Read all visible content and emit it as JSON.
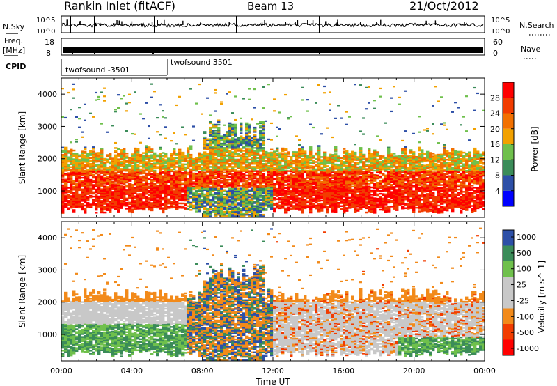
{
  "header": {
    "station": "Rankin Inlet (fitACF)",
    "beam": "Beam 13",
    "date": "21/Oct/2012"
  },
  "panels": {
    "nsky": {
      "left_label": "N.Sky",
      "right_label": "N.Search",
      "tick_top": "10^5",
      "tick_bottom": "10^0"
    },
    "freq": {
      "left_label_top": "Freq.",
      "left_label_bottom": "[MHz]",
      "left_tick_top": "18",
      "left_tick_bottom": "8",
      "right_label": "Nave",
      "right_tick_top": "60",
      "right_tick_bottom": "0"
    },
    "cpid": {
      "label": "CPID",
      "segments": [
        {
          "label": "twofsound -3501",
          "start_hour": 0
        },
        {
          "label": "twofsound 3501",
          "start_hour": 6.0
        }
      ]
    }
  },
  "colors": {
    "power": [
      "#0000ff",
      "#2d4fa7",
      "#3b8c59",
      "#6fc04c",
      "#f2a100",
      "#f27000",
      "#f23c00",
      "#ff0000"
    ],
    "velocity": [
      "#ff0000",
      "#f23c00",
      "#f28a1a",
      "#c8c8c8",
      "#c8c8c8",
      "#6fc04c",
      "#3b8c59",
      "#2d4fa7"
    ]
  },
  "chart_data": [
    {
      "type": "heatmap",
      "name": "power",
      "ylabel": "Slant Range [km]",
      "xlabel": "",
      "x_ticks": [
        "00:00",
        "04:00",
        "08:00",
        "12:00",
        "16:00",
        "20:00",
        "00:00"
      ],
      "y_ticks": [
        1000,
        2000,
        3000,
        4000
      ],
      "xlim": [
        0,
        24
      ],
      "ylim": [
        180,
        4500
      ],
      "colorbar": {
        "label": "Power [dB]",
        "ticks": [
          4,
          8,
          12,
          16,
          20,
          24,
          28
        ],
        "range": [
          0,
          32
        ]
      },
      "bands": [
        {
          "x": [
            0,
            24
          ],
          "y": [
            500,
            1600
          ],
          "value": 26
        },
        {
          "x": [
            0,
            24
          ],
          "y": [
            1600,
            2300
          ],
          "value": 18
        },
        {
          "x": [
            8,
            12
          ],
          "y": [
            300,
            900
          ],
          "value": 10
        }
      ]
    },
    {
      "type": "heatmap",
      "name": "velocity",
      "ylabel": "Slant Range [km]",
      "xlabel": "Time UT",
      "x_ticks": [
        "00:00",
        "04:00",
        "08:00",
        "12:00",
        "16:00",
        "20:00",
        "00:00"
      ],
      "y_ticks": [
        1000,
        2000,
        3000,
        4000
      ],
      "xlim": [
        0,
        24
      ],
      "ylim": [
        180,
        4500
      ],
      "colorbar": {
        "label": "Velocity [m s^-1]",
        "ticks": [
          1000,
          500,
          100,
          25,
          -25,
          -100,
          -500,
          -1000
        ]
      },
      "bands": [
        {
          "x": [
            0,
            6
          ],
          "y": [
            400,
            1200
          ],
          "value": 150
        },
        {
          "x": [
            10,
            24
          ],
          "y": [
            700,
            2000
          ],
          "value": 0
        },
        {
          "x": [
            12,
            24
          ],
          "y": [
            1200,
            2300
          ],
          "value": -200
        }
      ]
    }
  ]
}
